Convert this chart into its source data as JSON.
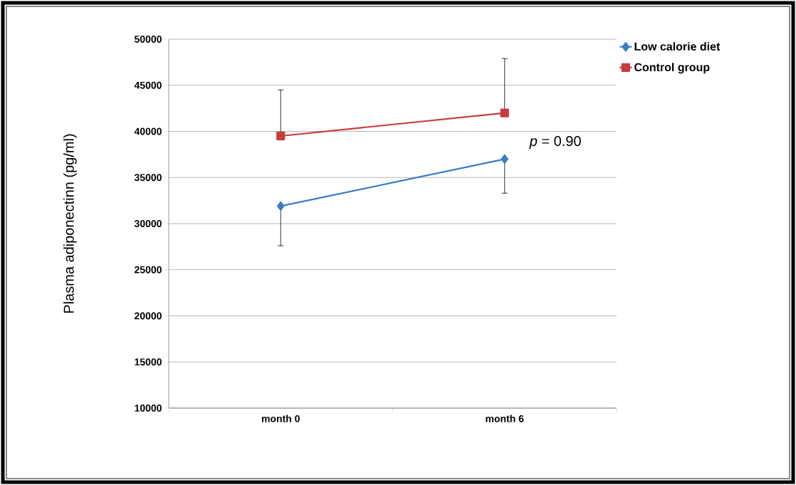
{
  "chart_data": {
    "type": "line",
    "ylabel": "Plasma adiponectinn (pg/ml)",
    "categories": [
      "month 0",
      "month 6"
    ],
    "series": [
      {
        "name": "Low calorie diet",
        "color": "#3c7cc8",
        "marker": "diamond",
        "values": [
          31900,
          37000
        ],
        "errors": [
          [
            27600,
            31900
          ],
          [
            33300,
            37000
          ]
        ]
      },
      {
        "name": "Control group",
        "color": "#c83c3c",
        "marker": "square",
        "values": [
          39500,
          42000
        ],
        "errors": [
          [
            39500,
            44500
          ],
          [
            42000,
            47900
          ]
        ]
      }
    ],
    "ylim": [
      10000,
      50000
    ],
    "yticks": [
      10000,
      15000,
      20000,
      25000,
      30000,
      35000,
      40000,
      45000,
      50000
    ],
    "grid": "y",
    "legend": "top right",
    "line_style": "solid",
    "annotations": [
      "*p* = 0.90"
    ]
  }
}
